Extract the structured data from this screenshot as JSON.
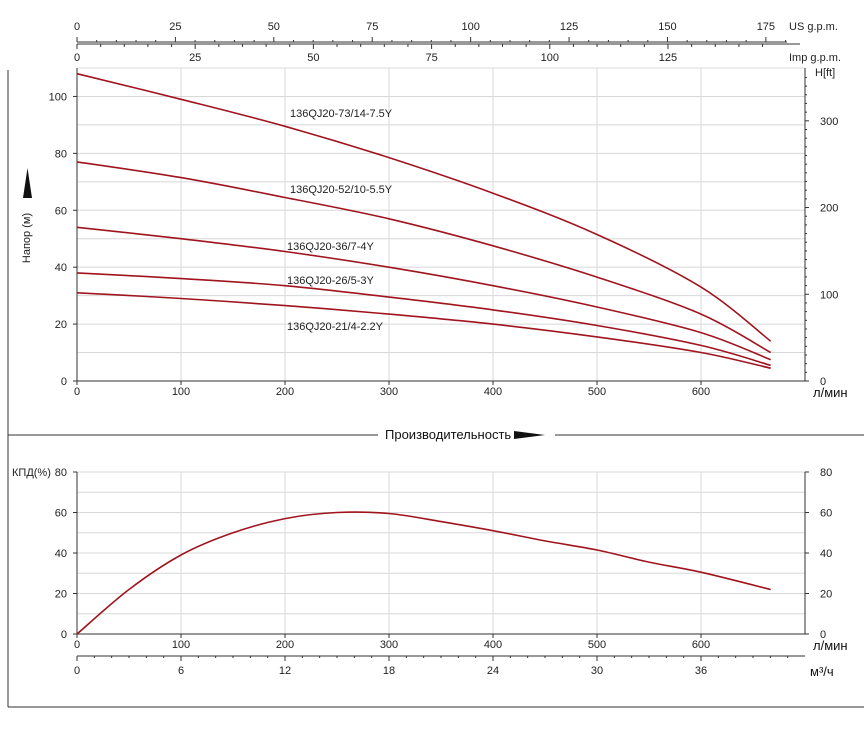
{
  "colors": {
    "curve": "#a0141e",
    "grid": "#d8d8d8",
    "axis": "#333333"
  },
  "top_axes": {
    "us_gpm": {
      "label": "US g.p.m.",
      "ticks": [
        0,
        25,
        50,
        75,
        100,
        125,
        150,
        175
      ]
    },
    "imp_gpm": {
      "label": "Imp g.p.m.",
      "ticks": [
        0,
        25,
        50,
        75,
        100,
        125
      ]
    }
  },
  "center_label": "Производительность",
  "chart_data": [
    {
      "type": "line",
      "ylabel": "Напор (м)",
      "xlabel": "л/мин",
      "y2label": "H[ft]",
      "xlim": [
        0,
        700
      ],
      "ylim": [
        0,
        110
      ],
      "y2lim": [
        0,
        360
      ],
      "x_ticks": [
        0,
        100,
        200,
        300,
        400,
        500,
        600
      ],
      "y_ticks": [
        0,
        20,
        40,
        60,
        80,
        100
      ],
      "y2_ticks": [
        0,
        100,
        200,
        300
      ],
      "series": [
        {
          "name": "136QJ20-73/14-7.5Y",
          "x": [
            0,
            100,
            200,
            300,
            400,
            500,
            600,
            667
          ],
          "y": [
            108,
            99,
            89.5,
            78.5,
            66,
            51.5,
            33,
            14
          ]
        },
        {
          "name": "136QJ20-52/10-5.5Y",
          "x": [
            0,
            100,
            200,
            300,
            400,
            500,
            600,
            667
          ],
          "y": [
            77,
            71.5,
            64.5,
            57,
            47.5,
            36.5,
            23.5,
            10
          ]
        },
        {
          "name": "136QJ20-36/7-4Y",
          "x": [
            0,
            100,
            200,
            300,
            400,
            500,
            600,
            667
          ],
          "y": [
            54,
            50,
            45.5,
            40,
            33.5,
            26,
            17,
            7.5
          ]
        },
        {
          "name": "136QJ20-26/5-3Y",
          "x": [
            0,
            100,
            200,
            300,
            400,
            500,
            600,
            667
          ],
          "y": [
            38,
            36,
            33.5,
            29.5,
            25,
            19.5,
            12.5,
            5.5
          ]
        },
        {
          "name": "136QJ20-21/4-2.2Y",
          "x": [
            0,
            100,
            200,
            300,
            400,
            500,
            600,
            667
          ],
          "y": [
            31,
            29,
            26.5,
            23.5,
            20,
            15.5,
            10,
            4.5
          ]
        }
      ]
    },
    {
      "type": "line",
      "ylabel": "КПД(%)",
      "xlabel": "л/мин",
      "x2label": "м³/ч",
      "xlim": [
        0,
        700
      ],
      "ylim": [
        0,
        80
      ],
      "x_ticks": [
        0,
        100,
        200,
        300,
        400,
        500,
        600
      ],
      "x2_ticks": [
        0,
        6,
        12,
        18,
        24,
        30,
        36
      ],
      "y_ticks": [
        0,
        20,
        40,
        60,
        80
      ],
      "y2_ticks": [
        0,
        20,
        40,
        60,
        80
      ],
      "series": [
        {
          "x": [
            0,
            50,
            100,
            150,
            200,
            250,
            300,
            350,
            400,
            450,
            500,
            550,
            600,
            667
          ],
          "y": [
            0,
            22,
            39,
            50,
            57,
            60,
            59.5,
            55.5,
            51,
            46,
            41.5,
            35.5,
            30.5,
            22
          ]
        }
      ]
    }
  ]
}
